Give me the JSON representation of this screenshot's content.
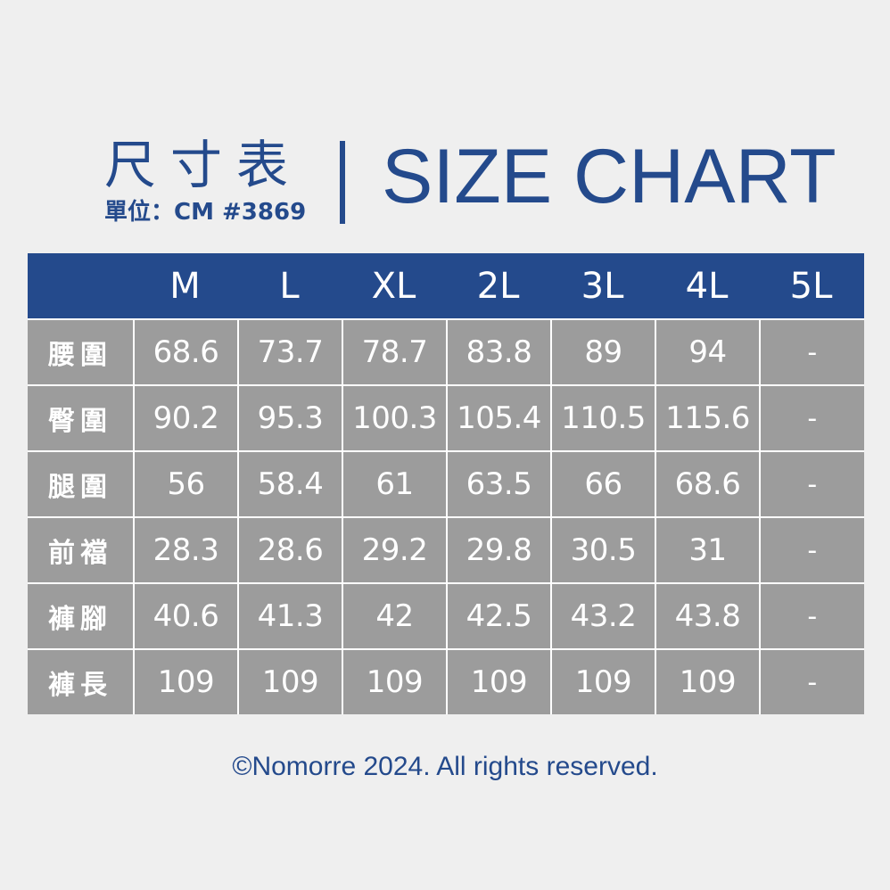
{
  "header": {
    "title_zh": "尺寸表",
    "subtitle": "單位：CM #3869",
    "title_en": "SIZE CHART"
  },
  "colors": {
    "accent": "#244a8c",
    "cell_bg": "#9c9c9c",
    "background": "#efefef",
    "text_light": "#ffffff"
  },
  "chart_data": {
    "type": "table",
    "columns": [
      "M",
      "L",
      "XL",
      "2L",
      "3L",
      "4L",
      "5L"
    ],
    "rows": [
      {
        "label": "腰圍",
        "values": [
          "68.6",
          "73.7",
          "78.7",
          "83.8",
          "89",
          "94",
          "-"
        ]
      },
      {
        "label": "臀圍",
        "values": [
          "90.2",
          "95.3",
          "100.3",
          "105.4",
          "110.5",
          "115.6",
          "-"
        ]
      },
      {
        "label": "腿圍",
        "values": [
          "56",
          "58.4",
          "61",
          "63.5",
          "66",
          "68.6",
          "-"
        ]
      },
      {
        "label": "前襠",
        "values": [
          "28.3",
          "28.6",
          "29.2",
          "29.8",
          "30.5",
          "31",
          "-"
        ]
      },
      {
        "label": "褲腳",
        "values": [
          "40.6",
          "41.3",
          "42",
          "42.5",
          "43.2",
          "43.8",
          "-"
        ]
      },
      {
        "label": "褲長",
        "values": [
          "109",
          "109",
          "109",
          "109",
          "109",
          "109",
          "-"
        ]
      }
    ]
  },
  "footer": {
    "copyright": "©Nomorre 2024. All rights reserved."
  }
}
